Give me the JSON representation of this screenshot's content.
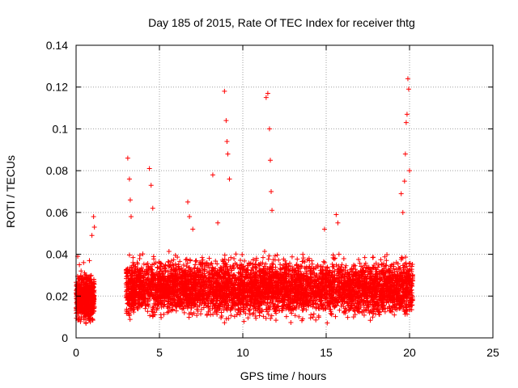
{
  "chart_data": {
    "type": "scatter",
    "title": "Day 185 of 2015, Rate Of TEC Index for receiver thtg",
    "xlabel": "GPS time / hours",
    "ylabel": "ROTI / TECUs",
    "xlim": [
      0,
      25
    ],
    "ylim": [
      0,
      0.14
    ],
    "xticks": [
      0,
      5,
      10,
      15,
      20,
      25
    ],
    "yticks": [
      0,
      0.02,
      0.04,
      0.06,
      0.08,
      0.1,
      0.12,
      0.14
    ],
    "xtick_labels": [
      "0",
      "5",
      "10",
      "15",
      "20",
      "25"
    ],
    "ytick_labels": [
      "0",
      "0.02",
      "0.04",
      "0.06",
      "0.08",
      "0.1",
      "0.12",
      "0.14"
    ],
    "grid": true,
    "marker": "+",
    "color": "#ff0000",
    "series": [
      {
        "x": [
          0.1,
          0.2,
          0.3,
          0.45,
          0.6,
          0.8,
          0.95,
          1.05,
          1.1,
          3.1,
          3.2,
          3.25,
          3.3,
          4.4,
          4.5,
          4.6,
          6.7,
          6.8,
          7.0,
          8.2,
          8.5,
          8.9,
          9.0,
          9.05,
          9.1,
          9.2,
          11.4,
          11.5,
          11.6,
          11.65,
          11.7,
          11.75,
          13.6,
          14.9,
          15.6,
          15.7,
          19.5,
          19.6,
          19.7,
          19.75,
          19.8,
          19.85,
          19.9,
          19.95,
          20.0
        ],
        "values": [
          0.039,
          0.035,
          0.032,
          0.036,
          0.029,
          0.037,
          0.049,
          0.058,
          0.053,
          0.086,
          0.076,
          0.066,
          0.058,
          0.081,
          0.073,
          0.062,
          0.065,
          0.058,
          0.052,
          0.078,
          0.055,
          0.118,
          0.104,
          0.094,
          0.088,
          0.076,
          0.115,
          0.117,
          0.1,
          0.085,
          0.07,
          0.061,
          0.04,
          0.052,
          0.059,
          0.055,
          0.069,
          0.06,
          0.075,
          0.088,
          0.103,
          0.107,
          0.124,
          0.119,
          0.08
        ]
      }
    ],
    "bands": [
      {
        "x_start": 0.0,
        "x_end": 1.1,
        "y_low": 0.005,
        "y_high": 0.033,
        "density": 650
      },
      {
        "x_start": 3.0,
        "x_end": 20.2,
        "y_low": 0.006,
        "y_high": 0.042,
        "density": 5200
      }
    ]
  }
}
